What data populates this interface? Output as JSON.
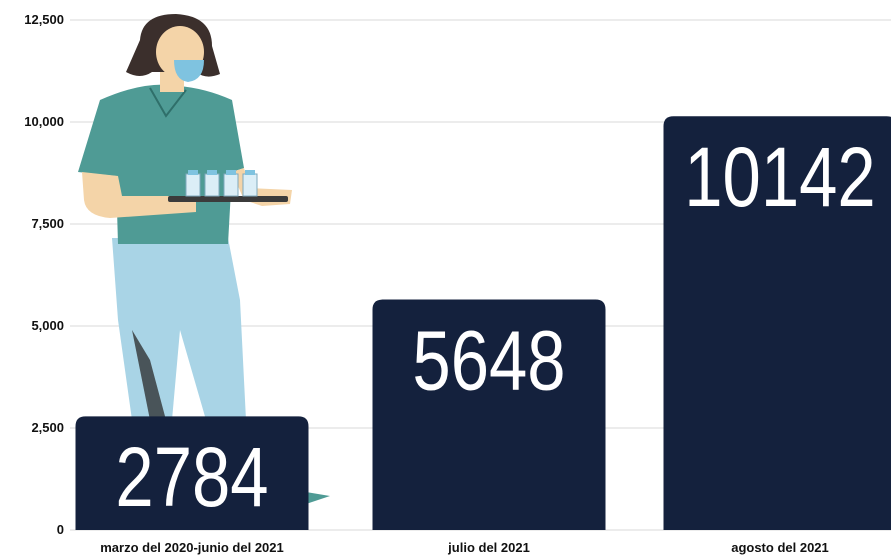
{
  "chart_data": {
    "type": "bar",
    "categories": [
      "marzo del 2020-junio del 2021",
      "julio del 2021",
      "agosto del 2021"
    ],
    "values": [
      2784,
      5648,
      10142
    ],
    "value_labels": [
      "2784",
      "5648",
      "10142"
    ],
    "y_ticks": [
      {
        "value": 0,
        "label": "0"
      },
      {
        "value": 2500,
        "label": "2,500"
      },
      {
        "value": 5000,
        "label": "5,000"
      },
      {
        "value": 7500,
        "label": "7,500"
      },
      {
        "value": 10000,
        "label": "10,000"
      },
      {
        "value": 12500,
        "label": "12,500"
      }
    ],
    "ylim": [
      0,
      12500
    ],
    "grid": true,
    "legend": "none",
    "colors": {
      "bar": "#14213d",
      "value_text": "#ffffff",
      "grid": "#d9d9d9",
      "illustration_scrubs": "#4f9b95",
      "illustration_pants": "#a9d4e6",
      "illustration_skin": "#f4d4a8",
      "illustration_hair": "#3b2f2c",
      "illustration_mask": "#7fc3e0"
    }
  },
  "illustration": {
    "icon": "nurse-with-vaccine-tray-icon"
  }
}
